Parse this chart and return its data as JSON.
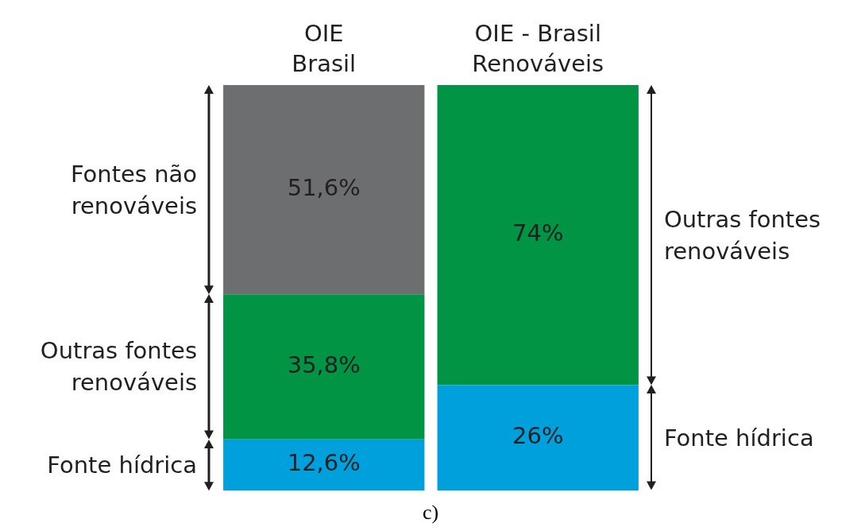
{
  "chart_data": {
    "type": "bar",
    "stacked": true,
    "categories": [
      "OIE Brasil",
      "OIE - Brasil Renováveis"
    ],
    "ylim": [
      0,
      100
    ],
    "legend": false,
    "series": [
      {
        "name": "Fonte hídrica",
        "color": "#00a0dc",
        "values": [
          12.6,
          26
        ],
        "value_labels": [
          "12,6%",
          "26%"
        ]
      },
      {
        "name": "Outras fontes renováveis",
        "color": "#009444",
        "values": [
          35.8,
          74
        ],
        "value_labels": [
          "35,8%",
          "74%"
        ]
      },
      {
        "name": "Fontes não renováveis",
        "color": "#6d6e70",
        "values": [
          51.6,
          null
        ],
        "value_labels": [
          "51,6%",
          null
        ]
      }
    ],
    "annotations": [
      "c)"
    ]
  }
}
